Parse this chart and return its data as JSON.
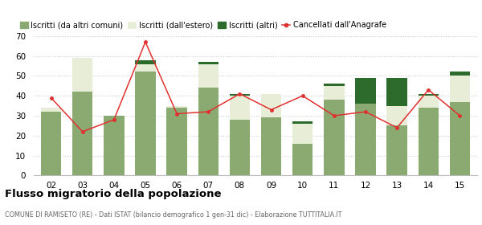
{
  "years": [
    "02",
    "03",
    "04",
    "05",
    "06",
    "07",
    "08",
    "09",
    "10",
    "11",
    "12",
    "13",
    "14",
    "15"
  ],
  "iscritti_altri_comuni": [
    32,
    42,
    30,
    52,
    34,
    44,
    28,
    29,
    16,
    38,
    36,
    25,
    34,
    37
  ],
  "iscritti_estero": [
    2,
    17,
    0,
    4,
    1,
    12,
    12,
    12,
    10,
    7,
    0,
    10,
    6,
    13
  ],
  "iscritti_altri": [
    0,
    0,
    0,
    2,
    0,
    1,
    1,
    0,
    1,
    1,
    13,
    14,
    1,
    2
  ],
  "cancellati": [
    39,
    22,
    28,
    67,
    31,
    32,
    41,
    33,
    40,
    30,
    32,
    24,
    43,
    30
  ],
  "color_altri_comuni": "#8aaa72",
  "color_estero": "#e8edd8",
  "color_altri": "#2d6b2d",
  "color_cancellati": "#e03030",
  "ylim": [
    0,
    70
  ],
  "yticks": [
    0,
    10,
    20,
    30,
    40,
    50,
    60,
    70
  ],
  "title": "Flusso migratorio della popolazione",
  "subtitle": "COMUNE DI RAMISETO (RE) - Dati ISTAT (bilancio demografico 1 gen-31 dic) - Elaborazione TUTTITALIA.IT",
  "legend_labels": [
    "Iscritti (da altri comuni)",
    "Iscritti (dall'estero)",
    "Iscritti (altri)",
    "Cancellati dall'Anagrafe"
  ],
  "background_color": "#ffffff",
  "grid_color": "#cccccc"
}
